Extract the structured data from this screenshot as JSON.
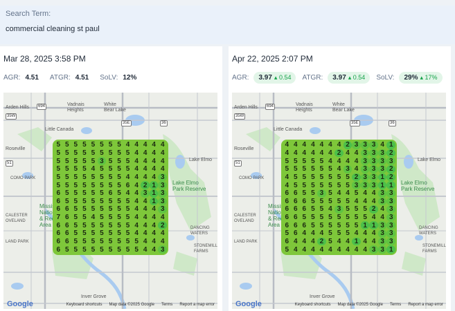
{
  "search": {
    "label": "Search Term:",
    "term": "commercial cleaning st paul"
  },
  "left": {
    "date": "Mar 28, 2025 3:58 PM",
    "agr": {
      "label": "AGR:",
      "value": "4.51"
    },
    "atgr": {
      "label": "ATGR:",
      "value": "4.51"
    },
    "solv": {
      "label": "SoLV:",
      "value": "12%"
    },
    "grid": [
      "5555555544444",
      "5555555554444",
      "5555535554444",
      "5555455554444",
      "5555555544443",
      "5555555564213",
      "6555556544313",
      "6555555554413",
      "6655555554443",
      "7655455554444",
      "6655555554442",
      "6655555554444",
      "6655555555444",
      "6555555555443"
    ]
  },
  "right": {
    "date": "Apr 22, 2025 2:07 PM",
    "agr": {
      "label": "AGR:",
      "value": "3.97",
      "delta": "▴ 0.54"
    },
    "atgr": {
      "label": "ATGR:",
      "value": "3.97",
      "delta": "▴ 0.54"
    },
    "solv": {
      "label": "SoLV:",
      "value": "29%",
      "delta": "▴ 17%"
    },
    "grid": [
      "4444444233341",
      "4444442443332",
      "5555544443333",
      "5555554343332",
      "4555555523312",
      "4555555533311",
      "6655354454433",
      "6665555544433",
      "6665543555243",
      "6655555555443",
      "6665555551133",
      "5644455544433",
      "6444254414433",
      "5444444444331"
    ]
  },
  "map": {
    "places": {
      "arden_hills": "Arden Hills",
      "vadnais": "Vadnais\nHeights",
      "white_bear": "White\nBear Lake",
      "little_canada": "Little Canada",
      "roseville": "Roseville",
      "lake_elmo": "Lake Elmo",
      "como_park": "COMO PARK",
      "park_reserve": "Lake Elmo\nPark Reserve",
      "mississ": "Mississ\nNational\n& Recrea\nArea",
      "calester": "CALESTER\nOVELAND",
      "land_park": "LAND PARK",
      "dancing": "DANCING\nWATERS",
      "stonemill": "STONEMILL\nFARMS",
      "inver": "Inver Grove"
    },
    "highways": {
      "h694": "694",
      "h35e": "35E",
      "h36": "36",
      "h51": "51",
      "h35w": "35W"
    },
    "attribution": {
      "logo": "Google",
      "shortcuts": "Keyboard shortcuts",
      "mapdata": "Map data ©2025 Google",
      "terms": "Terms",
      "report": "Report a map error"
    }
  }
}
